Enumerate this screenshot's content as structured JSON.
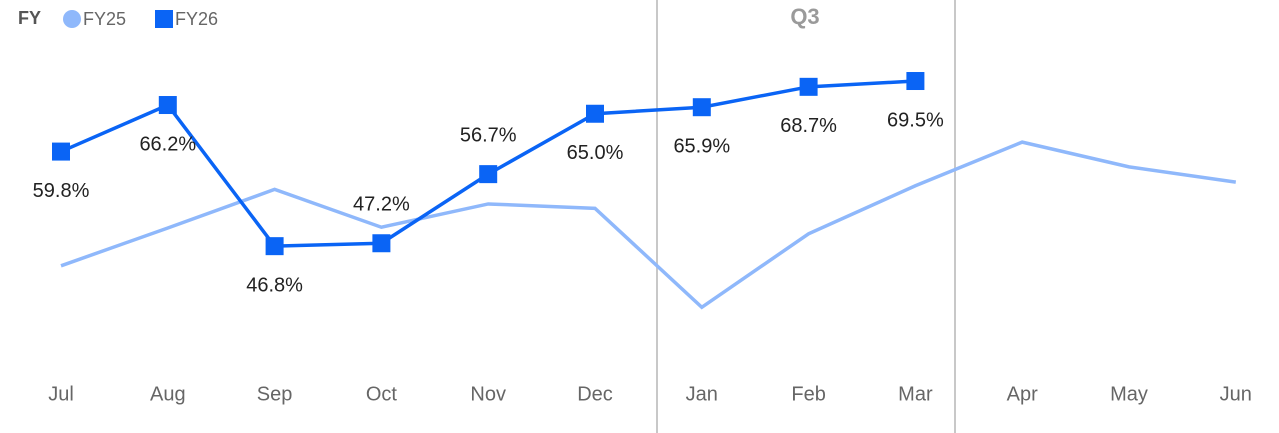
{
  "chart_data": {
    "type": "line",
    "legend_title": "FY",
    "annotation": "Q3",
    "categories": [
      "Jul",
      "Aug",
      "Sep",
      "Oct",
      "Nov",
      "Dec",
      "Jan",
      "Feb",
      "Mar",
      "Apr",
      "May",
      "Jun"
    ],
    "series": [
      {
        "name": "FY25",
        "color": "#8fb8fb",
        "marker": "circle",
        "values": [
          44.1,
          49.3,
          54.6,
          49.4,
          52.6,
          52.0,
          38.4,
          48.5,
          55.1,
          61.1,
          57.7,
          55.6
        ]
      },
      {
        "name": "FY26",
        "color": "#0a64f5",
        "marker": "square",
        "values": [
          59.8,
          66.2,
          46.8,
          47.2,
          56.7,
          65.0,
          65.9,
          68.7,
          69.5,
          null,
          null,
          null
        ],
        "value_labels": [
          "59.8%",
          "66.2%",
          "46.8%",
          "47.2%",
          "56.7%",
          "65.0%",
          "65.9%",
          "68.7%",
          "69.5%",
          null,
          null,
          null
        ]
      }
    ],
    "ylim": [
      35,
      75
    ]
  }
}
